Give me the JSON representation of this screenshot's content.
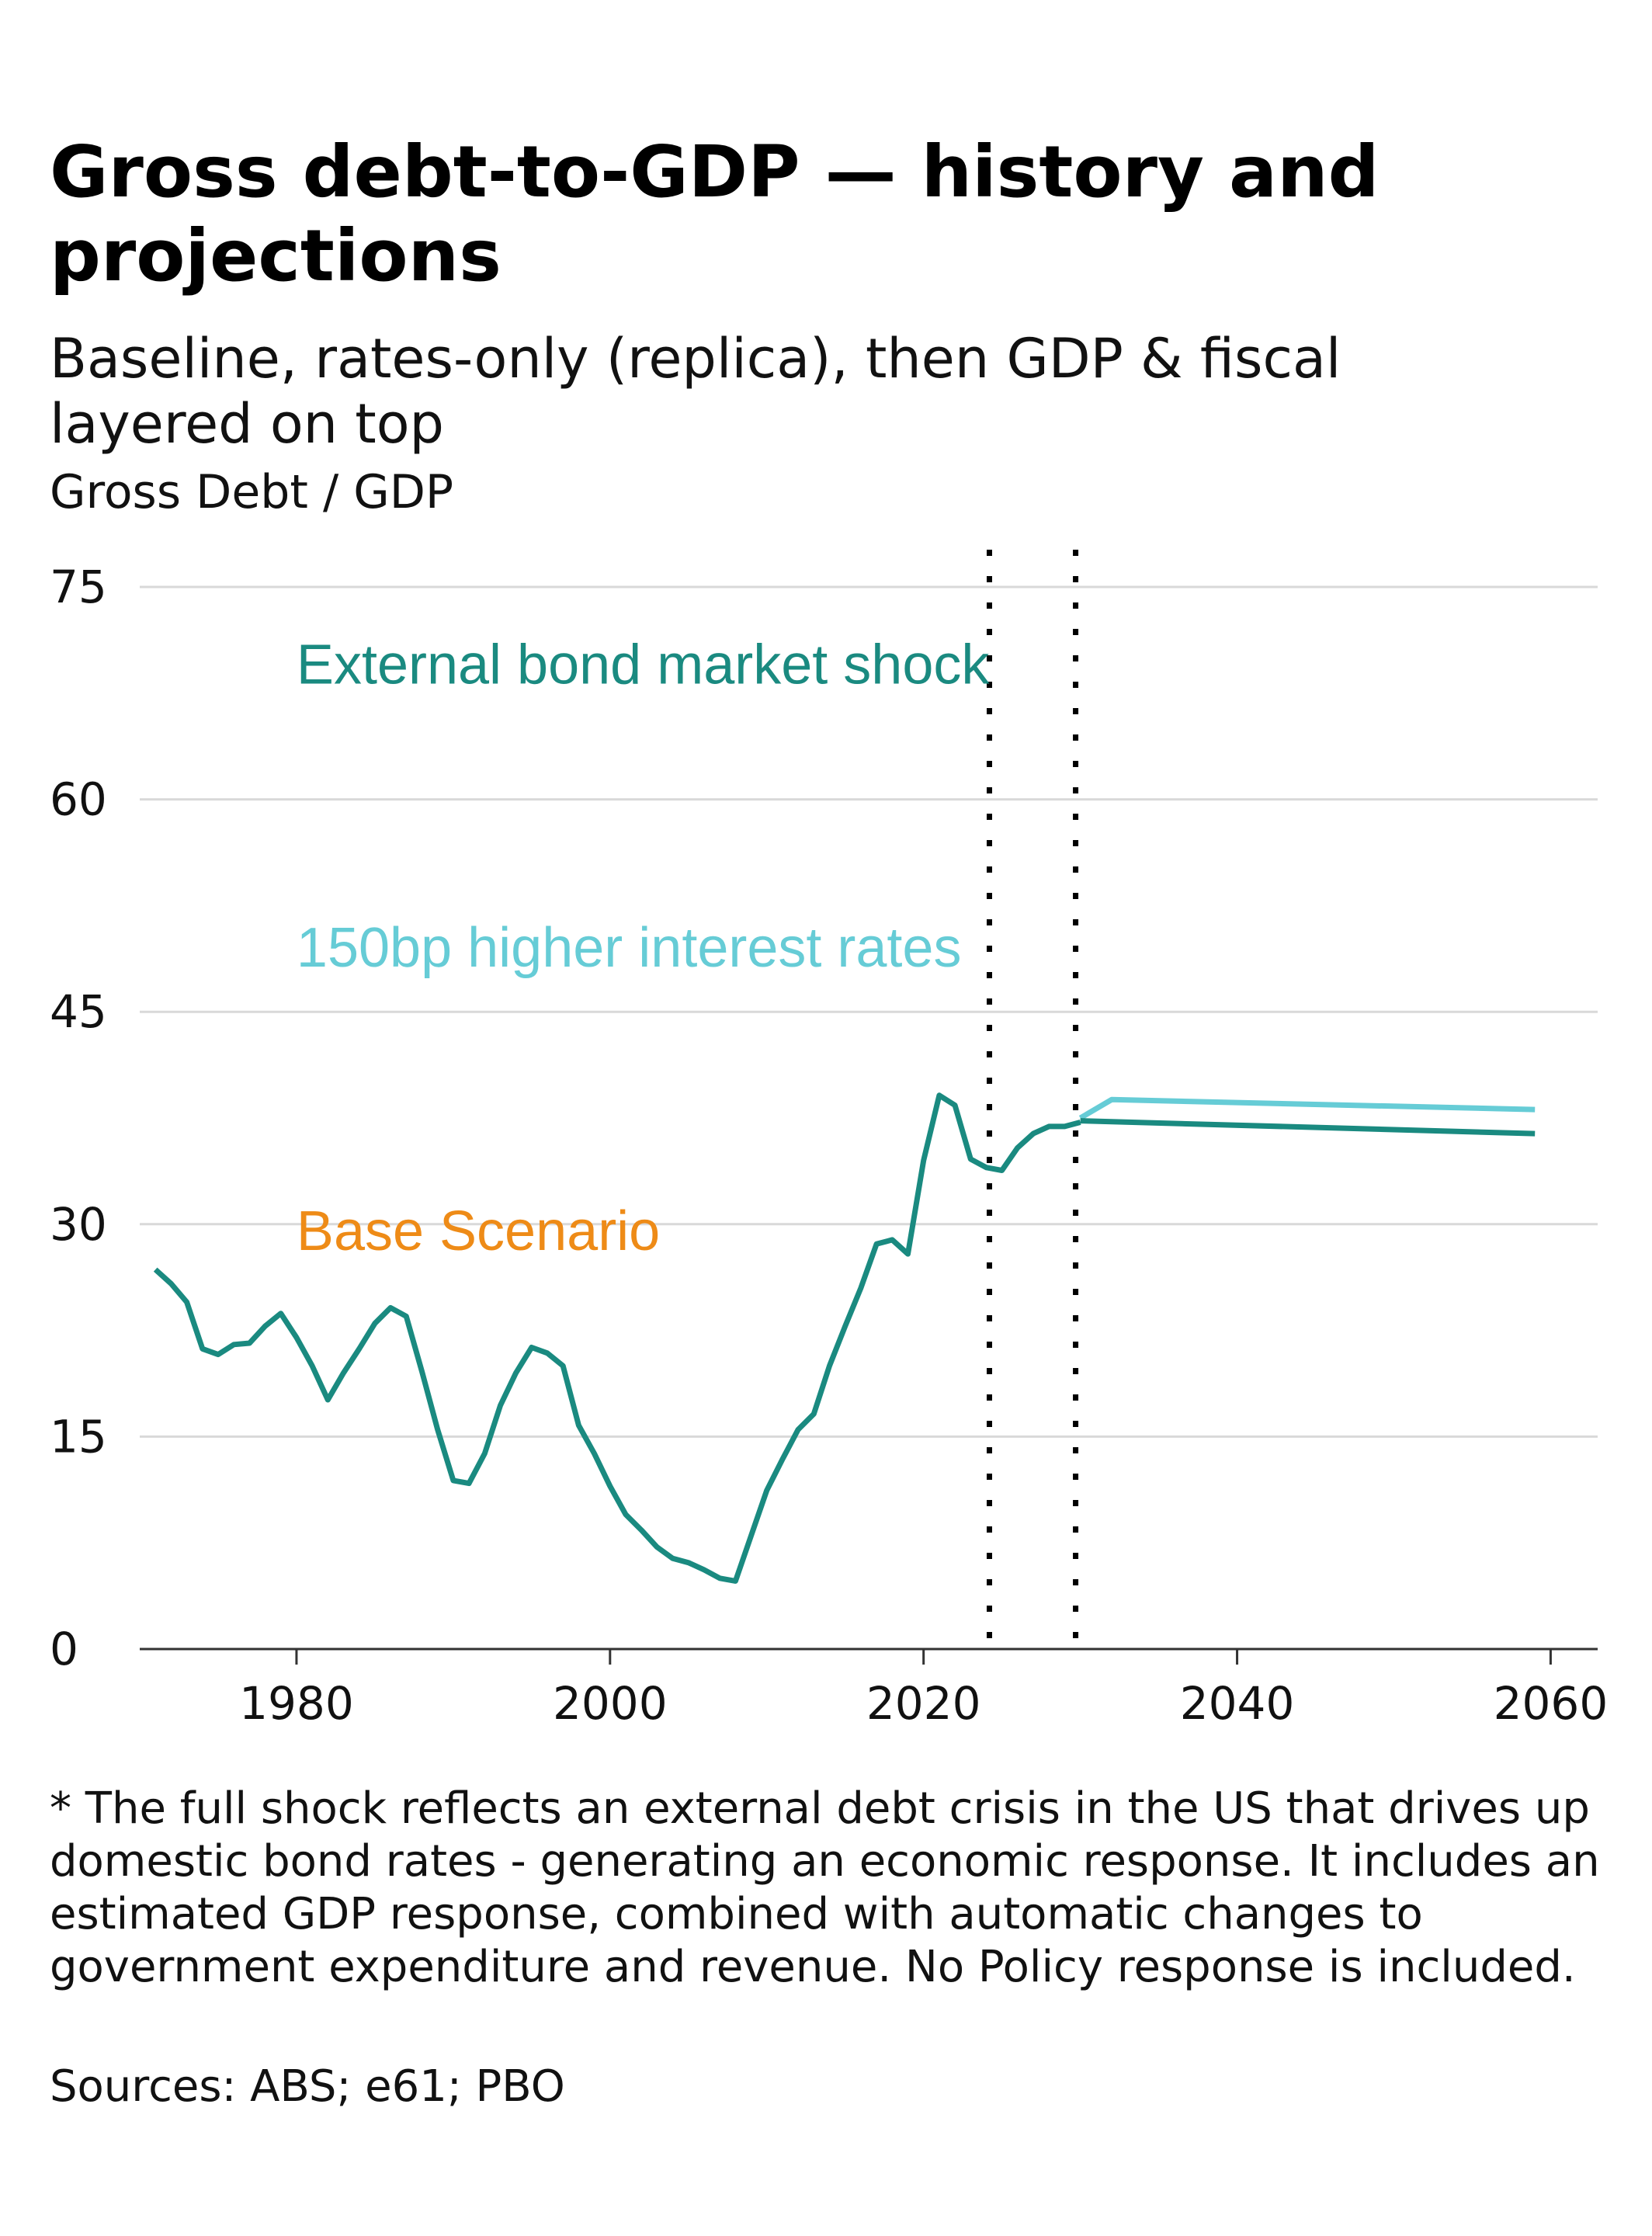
{
  "title": "Gross debt-to-GDP — history and projections",
  "subtitle": "Baseline, rates-only (replica), then GDP & fiscal layered on top",
  "unit_label": "Gross Debt / GDP",
  "footnote": "* The full shock reflects an external debt crisis in the US that drives up domestic bond rates - generating an economic response. It includes an estimated GDP response, combined with automatic changes to government expenditure and revenue. No Policy response is included.",
  "source": "Sources: ABS; e61; PBO",
  "colors": {
    "history": "#1a8a80",
    "external_shock": "#1a8a80",
    "rates_only": "#66ccd6",
    "base_scenario": "#ee8b17",
    "grid": "#d9d9d9",
    "axis": "#333333",
    "vline": "#000000"
  },
  "chart_data": {
    "type": "line",
    "xlabel": "",
    "ylabel": "",
    "xlim": [
      1970,
      2063
    ],
    "ylim": [
      0,
      75
    ],
    "x_ticks": [
      1980,
      2000,
      2020,
      2040,
      2060
    ],
    "y_ticks": [
      0,
      15,
      30,
      45,
      60,
      75
    ],
    "grid": "horizontal",
    "vertical_markers": [
      2024.2,
      2029.7
    ],
    "annotations": [
      {
        "text": "External bond market shock",
        "x": 1980,
        "y": 69.5,
        "color": "#1a8a80"
      },
      {
        "text": "150bp higher interest rates",
        "x": 1980,
        "y": 49.5,
        "color": "#66ccd6"
      },
      {
        "text": "Base Scenario",
        "x": 1980,
        "y": 29.5,
        "color": "#ee8b17"
      }
    ],
    "series": [
      {
        "key": "history",
        "color": "#1a8a80",
        "points": [
          [
            1971,
            26.8
          ],
          [
            1972,
            25.8
          ],
          [
            1973,
            24.5
          ],
          [
            1974,
            21.2
          ],
          [
            1975,
            20.8
          ],
          [
            1976,
            21.5
          ],
          [
            1977,
            21.6
          ],
          [
            1978,
            22.8
          ],
          [
            1979,
            23.7
          ],
          [
            1980,
            22.0
          ],
          [
            1981,
            20.0
          ],
          [
            1982,
            17.6
          ],
          [
            1983,
            19.5
          ],
          [
            1984,
            21.2
          ],
          [
            1985,
            23.0
          ],
          [
            1986,
            24.1
          ],
          [
            1987,
            23.5
          ],
          [
            1988,
            19.6
          ],
          [
            1989,
            15.5
          ],
          [
            1990,
            11.9
          ],
          [
            1991,
            11.7
          ],
          [
            1992,
            13.8
          ],
          [
            1993,
            17.2
          ],
          [
            1994,
            19.5
          ],
          [
            1995,
            21.3
          ],
          [
            1996,
            20.9
          ],
          [
            1997,
            20.0
          ],
          [
            1998,
            15.8
          ],
          [
            1999,
            13.8
          ],
          [
            2000,
            11.5
          ],
          [
            2001,
            9.5
          ],
          [
            2002,
            8.4
          ],
          [
            2003,
            7.2
          ],
          [
            2004,
            6.4
          ],
          [
            2005,
            6.1
          ],
          [
            2006,
            5.6
          ],
          [
            2007,
            5.0
          ],
          [
            2008,
            4.8
          ],
          [
            2009,
            8.0
          ],
          [
            2010,
            11.2
          ],
          [
            2011,
            13.4
          ],
          [
            2012,
            15.5
          ],
          [
            2013,
            16.6
          ],
          [
            2014,
            20.0
          ],
          [
            2015,
            22.8
          ],
          [
            2016,
            25.5
          ],
          [
            2017,
            28.6
          ],
          [
            2018,
            28.9
          ],
          [
            2019,
            27.9
          ],
          [
            2020,
            34.5
          ],
          [
            2021,
            39.1
          ],
          [
            2022,
            38.4
          ],
          [
            2023,
            34.6
          ],
          [
            2024,
            34.0
          ],
          [
            2025,
            33.8
          ],
          [
            2026,
            35.4
          ],
          [
            2027,
            36.4
          ],
          [
            2028,
            36.9
          ],
          [
            2029,
            36.9
          ],
          [
            2030,
            37.2
          ]
        ]
      },
      {
        "key": "rates_only",
        "color": "#66ccd6",
        "points": [
          [
            2030,
            37.5
          ],
          [
            2032,
            38.8
          ],
          [
            2059,
            38.1
          ]
        ]
      },
      {
        "key": "external_shock",
        "color": "#1a8a80",
        "points": [
          [
            2030,
            37.3
          ],
          [
            2059,
            36.4
          ]
        ]
      }
    ]
  }
}
